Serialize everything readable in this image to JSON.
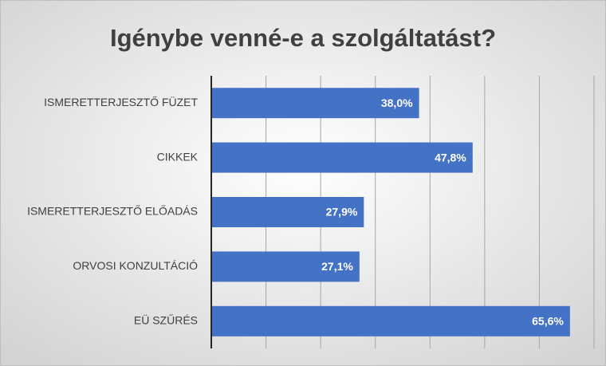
{
  "chart_data": {
    "type": "bar",
    "orientation": "horizontal",
    "title": "Igénybe venné-e a szolgáltatást?",
    "categories": [
      "ISMERETTERJESZTŐ FÜZET",
      "CIKKEK",
      "ISMERETTERJESZTŐ ELŐADÁS",
      "ORVOSI KONZULTÁCIÓ",
      "EÜ SZŰRÉS"
    ],
    "values": [
      38.0,
      47.8,
      27.9,
      27.1,
      65.6
    ],
    "value_labels": [
      "38,0%",
      "47,8%",
      "27,9%",
      "27,1%",
      "65,6%"
    ],
    "color": "#4472c4",
    "xlim": [
      0,
      70
    ],
    "xticks": [
      0,
      10,
      20,
      30,
      40,
      50,
      60,
      70
    ],
    "grid": true
  }
}
